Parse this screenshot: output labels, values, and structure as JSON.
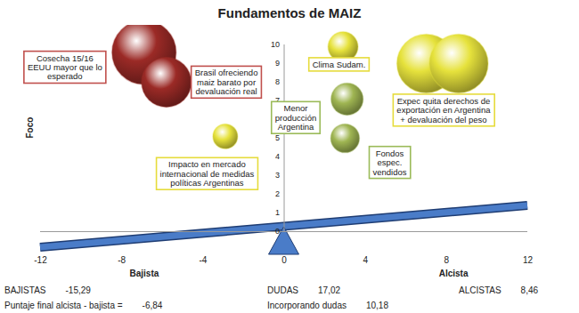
{
  "chart_data": {
    "type": "bubble",
    "title": "Fundamentos de MAIZ",
    "ylabel": "Foco",
    "x_labels": [
      "Bajista",
      "Alcista"
    ],
    "x": [
      -6.9,
      -5.8,
      -2.9,
      2.9,
      3.1,
      3.0,
      7.0,
      8.6
    ],
    "values": [
      9.6,
      8.0,
      5.1,
      9.9,
      7.1,
      5.0,
      9.0,
      9.0
    ],
    "sizes": [
      10,
      6,
      1.5,
      2.2,
      2.5,
      2.0,
      8.4,
      8.4
    ],
    "colors": [
      "#9b2a26",
      "#9b2a26",
      "#e6e23c",
      "#e6e23c",
      "#9fb552",
      "#9fb552",
      "#e6e23c",
      "#e6e23c"
    ],
    "xlim": [
      -12,
      12
    ],
    "xticks": [
      -12,
      -8,
      -4,
      0,
      4,
      8,
      12
    ],
    "ylim": [
      0,
      10
    ],
    "yticks": [
      0,
      1,
      2,
      3,
      4,
      5,
      6,
      7,
      8,
      9,
      10
    ],
    "annotations": [
      {
        "text": "Cosecha 15/16\nEEUU mayor que lo\nesperado",
        "x": -10.8,
        "y": 8.8,
        "color": "#c0504d"
      },
      {
        "text": "Brasil ofreciendo\nmaiz barato por\ndevaluación real",
        "x": -2.85,
        "y": 8.0,
        "color": "#c0504d"
      },
      {
        "text": "Clima Sudam.",
        "x": 2.7,
        "y": 8.95,
        "color": "#e6dc3c"
      },
      {
        "text": "Menor\nproducción\nArgentina",
        "x": 0.57,
        "y": 6.1,
        "color": "#9bbb59"
      },
      {
        "text": "Expec quita derechos de\nexportación en Argentina\n+ devaluación del peso",
        "x": 7.85,
        "y": 6.5,
        "color": "#e6dc3c"
      },
      {
        "text": "Impacto en mercado\ninternacional de medidas\npolíticas Argentinas",
        "x": -3.8,
        "y": 3.1,
        "color": "#e6dc3c"
      },
      {
        "text": "Fondos\nespec.\nvendidos",
        "x": 5.2,
        "y": 3.7,
        "color": "#9bbb59"
      }
    ],
    "summary": [
      [
        {
          "name": "BAJISTAS",
          "value": -15.29,
          "value_label": "-15,29"
        },
        {
          "name": "DUDAS",
          "value": 17.02,
          "value_label": "17,02"
        },
        {
          "name": "ALCISTAS",
          "value": 8.46,
          "value_label": "8,46"
        }
      ],
      [
        {
          "name": "Puntaje final alcista - bajista =",
          "value": -6.84,
          "value_label": "-6,84"
        },
        {
          "name": "Incorporando dudas",
          "value": 10.18,
          "value_label": "10,18"
        }
      ]
    ]
  }
}
